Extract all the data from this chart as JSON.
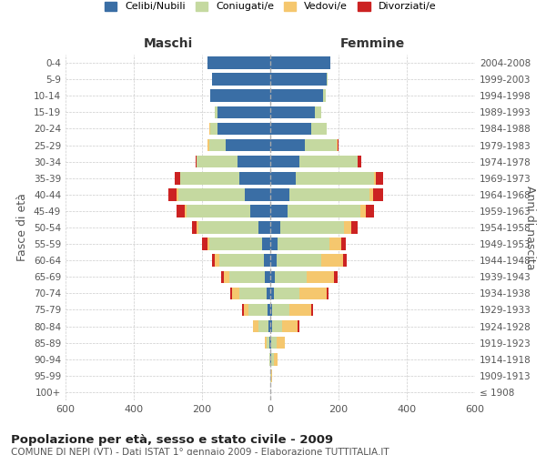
{
  "age_groups": [
    "100+",
    "95-99",
    "90-94",
    "85-89",
    "80-84",
    "75-79",
    "70-74",
    "65-69",
    "60-64",
    "55-59",
    "50-54",
    "45-49",
    "40-44",
    "35-39",
    "30-34",
    "25-29",
    "20-24",
    "15-19",
    "10-14",
    "5-9",
    "0-4"
  ],
  "birth_years": [
    "≤ 1908",
    "1909-1913",
    "1914-1918",
    "1919-1923",
    "1924-1928",
    "1929-1933",
    "1934-1938",
    "1939-1943",
    "1944-1948",
    "1949-1953",
    "1954-1958",
    "1959-1963",
    "1964-1968",
    "1969-1973",
    "1974-1978",
    "1979-1983",
    "1984-1988",
    "1989-1993",
    "1994-1998",
    "1999-2003",
    "2004-2008"
  ],
  "male": {
    "celibi": [
      0,
      0,
      0,
      2,
      5,
      8,
      12,
      15,
      20,
      25,
      35,
      60,
      75,
      90,
      95,
      130,
      155,
      155,
      175,
      170,
      185
    ],
    "coniugati": [
      0,
      0,
      2,
      8,
      30,
      55,
      80,
      105,
      130,
      155,
      175,
      185,
      195,
      175,
      120,
      50,
      20,
      8,
      2,
      0,
      0
    ],
    "vedovi": [
      0,
      0,
      2,
      5,
      15,
      15,
      20,
      15,
      12,
      5,
      5,
      5,
      5,
      0,
      0,
      5,
      5,
      0,
      0,
      0,
      0
    ],
    "divorziati": [
      0,
      0,
      0,
      0,
      0,
      5,
      5,
      8,
      8,
      15,
      15,
      25,
      25,
      15,
      5,
      0,
      0,
      0,
      0,
      0,
      0
    ]
  },
  "female": {
    "nubili": [
      0,
      0,
      2,
      3,
      5,
      5,
      10,
      12,
      18,
      22,
      30,
      50,
      55,
      75,
      85,
      100,
      120,
      130,
      155,
      165,
      175
    ],
    "coniugate": [
      0,
      2,
      8,
      15,
      30,
      50,
      75,
      95,
      130,
      150,
      185,
      215,
      235,
      230,
      170,
      95,
      45,
      20,
      8,
      2,
      0
    ],
    "vedovi": [
      0,
      2,
      12,
      25,
      45,
      65,
      80,
      80,
      65,
      35,
      22,
      15,
      10,
      5,
      2,
      2,
      0,
      0,
      0,
      0,
      0
    ],
    "divorziati": [
      0,
      0,
      0,
      0,
      5,
      5,
      5,
      10,
      10,
      15,
      18,
      25,
      30,
      20,
      10,
      2,
      0,
      0,
      0,
      0,
      0
    ]
  },
  "colors": {
    "celibi": "#3a6ea5",
    "coniugati": "#c5d9a0",
    "vedovi": "#f5c76e",
    "divorziati": "#cc2222"
  },
  "title": "Popolazione per età, sesso e stato civile - 2009",
  "subtitle": "COMUNE DI NEPI (VT) - Dati ISTAT 1° gennaio 2009 - Elaborazione TUTTITALIA.IT",
  "xlabel_left": "Maschi",
  "xlabel_right": "Femmine",
  "ylabel_left": "Fasce di età",
  "ylabel_right": "Anni di nascita",
  "xlim": 600,
  "legend_labels": [
    "Celibi/Nubili",
    "Coniugati/e",
    "Vedovi/e",
    "Divorziati/e"
  ],
  "background_color": "#ffffff",
  "grid_color": "#cccccc"
}
